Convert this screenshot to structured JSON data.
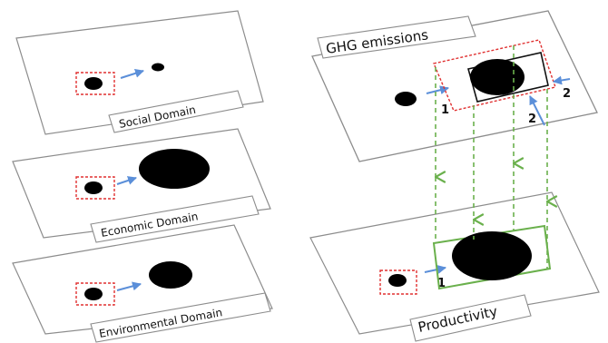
{
  "left_panels": {
    "social": {
      "label": "Social Domain"
    },
    "economic": {
      "label": "Economic Domain"
    },
    "environmental": {
      "label": "Environmental Domain"
    }
  },
  "right_panels": {
    "ghg": {
      "title": "GHG emissions",
      "marker_1": "1",
      "marker_2a": "2",
      "marker_2b": "2"
    },
    "productivity": {
      "label": "Productivity",
      "marker_1": "1"
    }
  },
  "colors": {
    "panel_border": "#8c8c8c",
    "circle": "#000000",
    "arrow": "#5b8fd9",
    "dashed_box": "#e03030",
    "green": "#6ab04c"
  }
}
